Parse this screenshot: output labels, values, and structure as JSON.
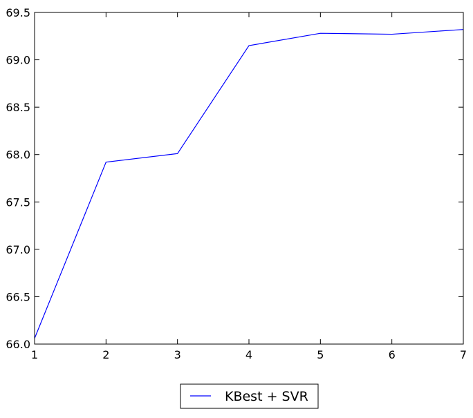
{
  "chart_data": {
    "type": "line",
    "title": "",
    "xlabel": "",
    "ylabel": "",
    "x": [
      1,
      2,
      3,
      4,
      5,
      6,
      7
    ],
    "xlim": [
      1,
      7
    ],
    "ylim": [
      66.0,
      69.5
    ],
    "xticks": [
      1,
      2,
      3,
      4,
      5,
      6,
      7
    ],
    "yticks": [
      66.0,
      66.5,
      67.0,
      67.5,
      68.0,
      68.5,
      69.0,
      69.5
    ],
    "xtick_labels": [
      "1",
      "2",
      "3",
      "4",
      "5",
      "6",
      "7"
    ],
    "ytick_labels": [
      "66.0",
      "66.5",
      "67.0",
      "67.5",
      "68.0",
      "68.5",
      "69.0",
      "69.5"
    ],
    "grid": false,
    "legend_position": "below-center",
    "series": [
      {
        "name": "KBest + SVR",
        "color": "#0000ff",
        "values": [
          66.06,
          67.92,
          68.01,
          69.15,
          69.28,
          69.27,
          69.32
        ]
      }
    ]
  }
}
